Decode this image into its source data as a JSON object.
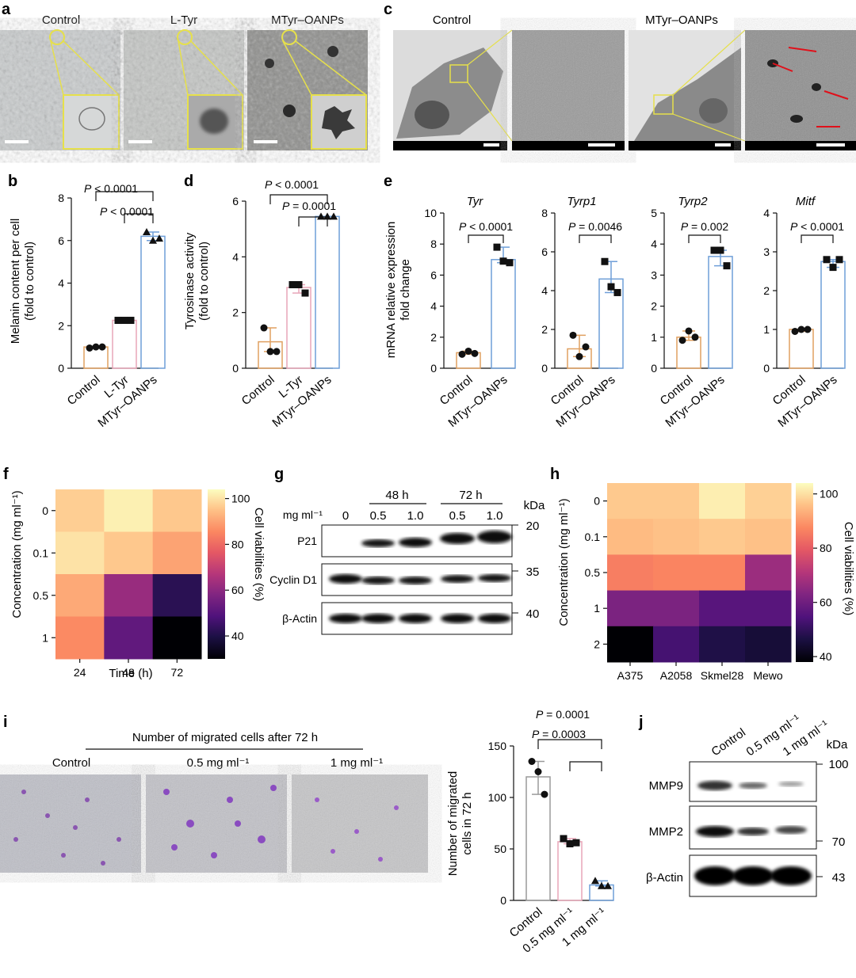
{
  "panels": {
    "a": {
      "label": "a",
      "titles": [
        "Control",
        "L-Tyr",
        "MTyr–OANPs"
      ]
    },
    "c": {
      "label": "c",
      "titles": [
        "Control",
        "MTyr–OANPs"
      ]
    },
    "b": {
      "label": "b",
      "ylabel1": "Melanin content per cell",
      "ylabel2": "(fold to control)",
      "p1": "P < 0.0001",
      "p2": "P < 0.0001"
    },
    "d": {
      "label": "d",
      "ylabel1": "Tyrosinase activity",
      "ylabel2": "(fold to control)",
      "p1": "P < 0.0001",
      "p2": "P = 0.0001"
    },
    "e": {
      "label": "e",
      "ylabel1": "mRNA relative expression",
      "ylabel2": "fold change"
    },
    "f": {
      "label": "f",
      "ylabel": "Concentration (mg ml⁻¹)",
      "xlabel": "Time (h)",
      "cbar_label": "Cell viabilities (%)"
    },
    "g": {
      "label": "g",
      "unit": "mg ml⁻¹",
      "kda": "kDa",
      "time48": "48 h",
      "time72": "72 h",
      "lanes": [
        "0",
        "0.5",
        "1.0",
        "0.5",
        "1.0"
      ],
      "bands": [
        "P21",
        "Cyclin D1",
        "β-Actin"
      ],
      "markers": [
        "20",
        "35",
        "40"
      ]
    },
    "h": {
      "label": "h",
      "ylabel": "Concentration (mg ml⁻¹)",
      "cbar_label": "Cell viabilities (%)"
    },
    "i": {
      "label": "i",
      "header": "Number of migrated cells after 72 h",
      "images": [
        "Control",
        "0.5 mg ml⁻¹",
        "1 mg ml⁻¹"
      ],
      "ylabel1": "Number of migrated",
      "ylabel2": "cells in 72 h",
      "p1": "P = 0.0001",
      "p2": "P = 0.0003"
    },
    "j": {
      "label": "j",
      "lanes": [
        "Control",
        "0.5 mg ml⁻¹",
        "1 mg ml⁻¹"
      ],
      "kda": "kDa",
      "bands": [
        "MMP9",
        "MMP2",
        "β-Actin"
      ],
      "markers": [
        "100",
        "70",
        "43"
      ]
    }
  },
  "chart_data": [
    {
      "id": "b",
      "type": "bar",
      "categories": [
        "Control",
        "L-Tyr",
        "MTyr–OANPs"
      ],
      "values": [
        1.0,
        2.25,
        6.2
      ],
      "points": [
        [
          0.95,
          1.0,
          1.0
        ],
        [
          2.25,
          2.25,
          2.25
        ],
        [
          6.4,
          6.0,
          6.1
        ]
      ],
      "ylim": [
        0,
        8
      ],
      "yticks": [
        0,
        2,
        4,
        6,
        8
      ],
      "colors": [
        "#e0a060",
        "#e8a6b8",
        "#6f9fd8"
      ]
    },
    {
      "id": "d",
      "type": "bar",
      "categories": [
        "Control",
        "L-Tyr",
        "MTyr–OANPs"
      ],
      "values": [
        0.95,
        2.9,
        5.45
      ],
      "points": [
        [
          1.45,
          0.6,
          0.6
        ],
        [
          3.0,
          3.0,
          2.7
        ],
        [
          5.45,
          5.45,
          5.45
        ]
      ],
      "ylim": [
        0,
        6
      ],
      "yticks": [
        0,
        2,
        4,
        6
      ],
      "colors": [
        "#e0a060",
        "#e8a6b8",
        "#6f9fd8"
      ]
    },
    {
      "id": "e1",
      "type": "bar",
      "title": "Tyr",
      "categories": [
        "Control",
        "MTyr–OANPs"
      ],
      "values": [
        1.0,
        7.0
      ],
      "points": [
        [
          0.9,
          1.1,
          0.95
        ],
        [
          7.8,
          6.9,
          6.8
        ]
      ],
      "ylim": [
        0,
        10
      ],
      "yticks": [
        0,
        2,
        4,
        6,
        8,
        10
      ],
      "p": "P < 0.0001",
      "colors": [
        "#e0a060",
        "#6f9fd8"
      ]
    },
    {
      "id": "e2",
      "type": "bar",
      "title": "Tyrp1",
      "categories": [
        "Control",
        "MTyr–OANPs"
      ],
      "values": [
        1.0,
        4.6
      ],
      "points": [
        [
          1.7,
          0.6,
          1.1
        ],
        [
          5.5,
          4.2,
          3.9
        ]
      ],
      "ylim": [
        0,
        8
      ],
      "yticks": [
        0,
        2,
        4,
        6,
        8
      ],
      "p": "P = 0.0046",
      "colors": [
        "#e0a060",
        "#6f9fd8"
      ]
    },
    {
      "id": "e3",
      "type": "bar",
      "title": "Tyrp2",
      "categories": [
        "Control",
        "MTyr–OANPs"
      ],
      "values": [
        1.0,
        3.6
      ],
      "points": [
        [
          0.9,
          1.2,
          1.0
        ],
        [
          3.8,
          3.8,
          3.3
        ]
      ],
      "ylim": [
        0,
        5
      ],
      "yticks": [
        0,
        1,
        2,
        3,
        4,
        5
      ],
      "p": "P = 0.002",
      "colors": [
        "#e0a060",
        "#6f9fd8"
      ]
    },
    {
      "id": "e4",
      "type": "bar",
      "title": "Mitf",
      "categories": [
        "Control",
        "MTyr–OANPs"
      ],
      "values": [
        1.0,
        2.75
      ],
      "points": [
        [
          0.95,
          1.0,
          1.0
        ],
        [
          2.8,
          2.6,
          2.8
        ]
      ],
      "ylim": [
        0,
        4
      ],
      "yticks": [
        0,
        1,
        2,
        3,
        4
      ],
      "p": "P < 0.0001",
      "colors": [
        "#e0a060",
        "#6f9fd8"
      ]
    },
    {
      "id": "f",
      "type": "heatmap",
      "x": [
        "24",
        "48",
        "72"
      ],
      "y": [
        "0",
        "0.1",
        "0.5",
        "1"
      ],
      "values": [
        [
          97,
          102,
          96
        ],
        [
          100,
          96,
          90
        ],
        [
          91,
          62,
          42
        ],
        [
          86,
          52,
          30
        ]
      ],
      "colorbar_ticks": [
        40,
        60,
        80,
        100
      ],
      "zlim": [
        30,
        104
      ]
    },
    {
      "id": "h",
      "type": "heatmap",
      "x": [
        "A375",
        "A2058",
        "Skmel28",
        "Mewo"
      ],
      "y": [
        "0",
        "0.1",
        "0.5",
        "1",
        "2"
      ],
      "values": [
        [
          97,
          97,
          102,
          98
        ],
        [
          95,
          96,
          97,
          96
        ],
        [
          86,
          87,
          87,
          67
        ],
        [
          62,
          62,
          56,
          56
        ],
        [
          38,
          53,
          47,
          45
        ]
      ],
      "colorbar_ticks": [
        40,
        60,
        80,
        100
      ],
      "zlim": [
        38,
        104
      ]
    },
    {
      "id": "i",
      "type": "bar",
      "categories": [
        "Control",
        "0.5 mg ml⁻¹",
        "1 mg ml⁻¹"
      ],
      "values": [
        120,
        57,
        15
      ],
      "points": [
        [
          135,
          125,
          103
        ],
        [
          60,
          55,
          56
        ],
        [
          19,
          14,
          14
        ]
      ],
      "ylim": [
        0,
        150
      ],
      "yticks": [
        0,
        50,
        100,
        150
      ],
      "colors": [
        "#9a9a9a",
        "#e8a6b8",
        "#6f9fd8"
      ]
    }
  ]
}
